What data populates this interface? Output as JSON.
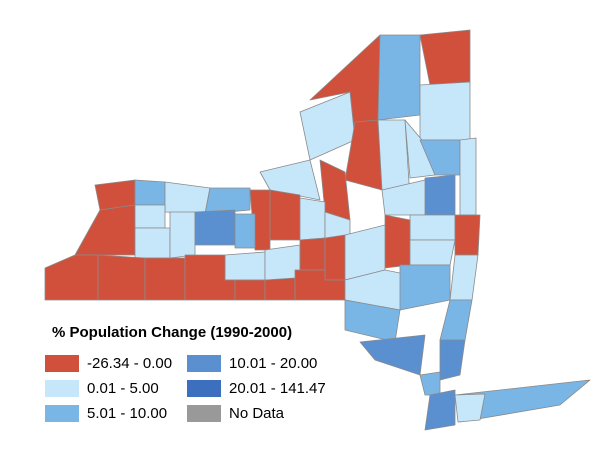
{
  "legend": {
    "title": "% Population Change (1990-2000)",
    "items": [
      {
        "label": "-26.34 - 0.00",
        "color": "#d0503c"
      },
      {
        "label": "0.01 - 5.00",
        "color": "#c6e6fa"
      },
      {
        "label": "5.01 - 10.00",
        "color": "#79b6e6"
      },
      {
        "label": "10.01 - 20.00",
        "color": "#5a90d0"
      },
      {
        "label": "20.01 - 141.47",
        "color": "#3d6fbf"
      },
      {
        "label": "No Data",
        "color": "#999999"
      }
    ]
  }
}
